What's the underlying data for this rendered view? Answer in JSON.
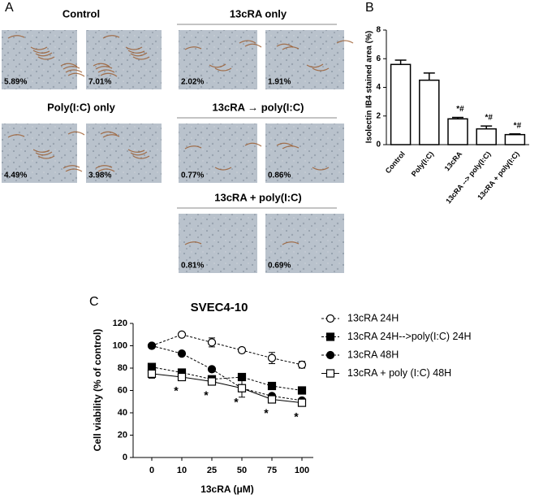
{
  "panel_labels": {
    "a": "A",
    "b": "B",
    "c": "C"
  },
  "micrographs": [
    {
      "title": "Control",
      "labels": [
        "5.89%",
        "7.01%"
      ]
    },
    {
      "title": "Poly(I:C) only",
      "labels": [
        "4.49%",
        "3.98%"
      ]
    },
    {
      "title": "13cRA only",
      "labels": [
        "2.02%",
        "1.91%"
      ]
    },
    {
      "title": "13cRA → poly(I:C)",
      "labels": [
        "0.77%",
        "0.86%"
      ]
    },
    {
      "title": "13cRA + poly(I:C)",
      "labels": [
        "0.81%",
        "0.69%"
      ]
    }
  ],
  "chart_data": [
    {
      "type": "bar",
      "ylabel": "Isolectin IB4 stained area (%)",
      "categories": [
        "Control",
        "Poly(I:C)",
        "13cRA",
        "13cRA --> poly(I:C)",
        "13cRA + poly(I:C)"
      ],
      "values": [
        5.6,
        4.5,
        1.8,
        1.1,
        0.7
      ],
      "errors": [
        0.3,
        0.5,
        0.1,
        0.2,
        0.05
      ],
      "annotations": [
        null,
        null,
        "*#",
        "*#",
        "*#"
      ],
      "color": "#ffffff",
      "ylim": [
        0,
        8
      ],
      "yticks": [
        0,
        2,
        4,
        6,
        8
      ]
    },
    {
      "type": "line",
      "title": "SVEC4-10",
      "xlabel": "13cRA (μM)",
      "ylabel": "Cell viability (% of control)",
      "categories": [
        "0",
        "10",
        "25",
        "50",
        "75",
        "100"
      ],
      "ylim": [
        0,
        120
      ],
      "yticks": [
        0,
        20,
        40,
        60,
        80,
        100,
        120
      ],
      "significance": [
        null,
        "*",
        "*",
        "*",
        "*",
        "*"
      ],
      "series": [
        {
          "name": "13cRA 24H",
          "color": "#000000",
          "marker": "circle-open",
          "dashed": true,
          "values": [
            100,
            110,
            103,
            96,
            89,
            83
          ],
          "errors": [
            0,
            1,
            4,
            2,
            5,
            3
          ]
        },
        {
          "name": "13cRA 24H-->poly(I:C) 24H",
          "color": "#000000",
          "marker": "square-filled",
          "dashed": true,
          "values": [
            81,
            76,
            70,
            72,
            64,
            60
          ],
          "errors": [
            2,
            2,
            2,
            2,
            2,
            2
          ]
        },
        {
          "name": "13cRA 48H",
          "color": "#000000",
          "marker": "circle-filled",
          "dashed": true,
          "values": [
            100,
            93,
            79,
            62,
            55,
            51
          ],
          "errors": [
            1,
            1,
            2,
            3,
            2,
            2
          ]
        },
        {
          "name": "13cRA + poly (I:C) 48H",
          "color": "#000000",
          "marker": "square-open",
          "dashed": false,
          "values": [
            75,
            72,
            68,
            62,
            52,
            49
          ],
          "errors": [
            4,
            3,
            3,
            8,
            3,
            3
          ]
        }
      ]
    }
  ]
}
